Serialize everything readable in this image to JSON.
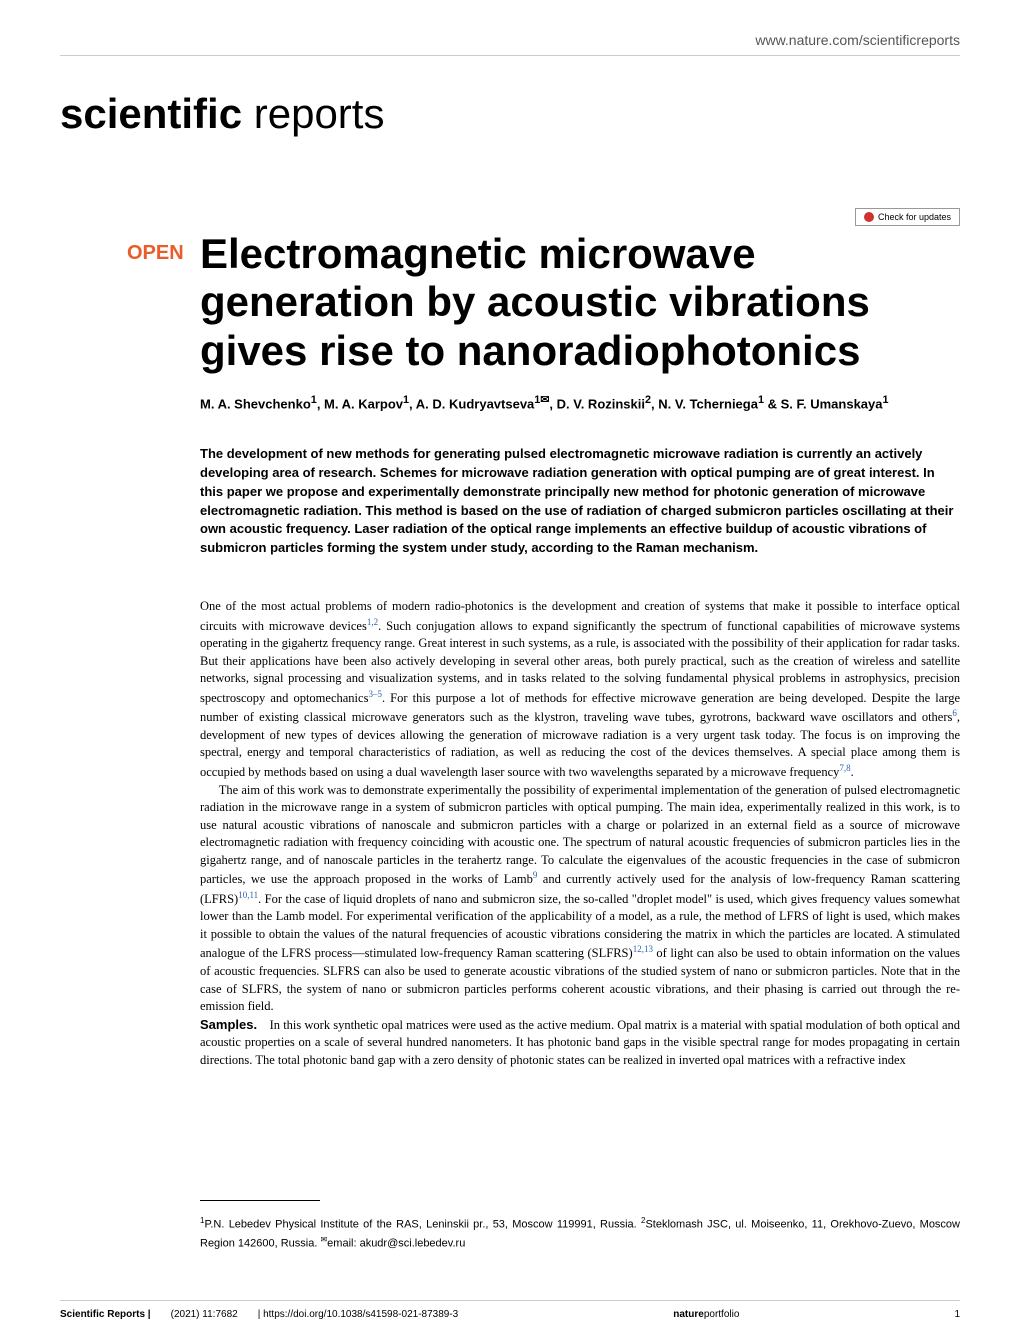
{
  "header": {
    "url": "www.nature.com/scientificreports"
  },
  "journal_logo": {
    "bold": "scientific",
    "light": " reports"
  },
  "check_updates": {
    "label": "Check for updates"
  },
  "open_badge": "OPEN",
  "article": {
    "title": "Electromagnetic microwave generation by acoustic vibrations gives rise to nanoradiophotonics",
    "authors_html": "M. A. Shevchenko<sup>1</sup>, M. A. Karpov<sup>1</sup>, A. D. Kudryavtseva<sup>1✉</sup>, D. V. Rozinskii<sup>2</sup>, N. V. Tcherniega<sup>1</sup> & S. F. Umanskaya<sup>1</sup>",
    "abstract": "The development of new methods for generating pulsed electromagnetic microwave radiation is currently an actively developing area of research. Schemes for microwave radiation generation with optical pumping are of great interest. In this paper we propose and experimentally demonstrate principally new method for photonic generation of microwave electromagnetic radiation. This method is based on the use of radiation of charged submicron particles oscillating at their own acoustic frequency. Laser radiation of the optical range implements an effective buildup of acoustic vibrations of submicron particles forming the system under study, according to the Raman mechanism."
  },
  "body": {
    "para1": "One of the most actual problems of modern radio-photonics is the development and creation of systems that make it possible to interface optical circuits with microwave devices",
    "cite1": "1,2",
    "para1b": ". Such conjugation allows to expand significantly the spectrum of functional capabilities of microwave systems operating in the gigahertz frequency range. Great interest in such systems, as a rule, is associated with the possibility of their application for radar tasks. But their applications have been also actively developing in several other areas, both purely practical, such as the creation of wireless and satellite networks, signal processing and visualization systems, and in tasks related to the solving fundamental physical problems in astrophysics, precision spectroscopy and optomechanics",
    "cite2": "3–5",
    "para1c": ". For this purpose a lot of methods for effective microwave generation are being developed. Despite the large number of existing classical microwave generators such as the klystron, traveling wave tubes, gyrotrons, backward wave oscillators and others",
    "cite3": "6",
    "para1d": ", development of new types of devices allowing the generation of microwave radiation is a very urgent task today. The focus is on improving the spectral, energy and temporal characteristics of radiation, as well as reducing the cost of the devices themselves. A special place among them is occupied by methods based on using a dual wavelength laser source with two wavelengths separated by a microwave frequency",
    "cite4": "7,8",
    "para1e": ".",
    "para2a": "The aim of this work was to demonstrate experimentally the possibility of experimental implementation of the generation of pulsed electromagnetic radiation in the microwave range in a system of submicron particles with optical pumping. The main idea, experimentally realized in this work, is to use natural acoustic vibrations of nanoscale and submicron particles with a charge or polarized in an external field as a source of microwave electromagnetic radiation with frequency coinciding with acoustic one. The spectrum of natural acoustic frequencies of submicron particles lies in the gigahertz range, and of nanoscale particles in the terahertz range. To calculate the eigenvalues of the acoustic frequencies in the case of submicron particles, we use the approach proposed in the works of Lamb",
    "cite5": "9",
    "para2b": " and currently actively used for the analysis of low-frequency Raman scattering (LFRS)",
    "cite6": "10,11",
    "para2c": ". For the case of liquid droplets of nano and submicron size, the so-called \"droplet model\" is used, which gives frequency values somewhat lower than the Lamb model. For experimental verification of the applicability of a model, as a rule, the method of LFRS of light is used, which makes it possible to obtain the values of the natural frequencies of acoustic vibrations considering the matrix in which the particles are located. A stimulated analogue of the LFRS process—stimulated low-frequency Raman scattering (SLFRS)",
    "cite7": "12,13",
    "para2d": " of light can also be used to obtain information on the values of acoustic frequencies. SLFRS can also be used to generate acoustic vibrations of the studied system of nano or submicron particles. Note that in the case of SLFRS, the system of nano or submicron particles performs coherent acoustic vibrations, and their phasing is carried out through the re-emission field."
  },
  "samples": {
    "heading": "Samples.",
    "text": "In this work synthetic opal matrices were used as the active medium. Opal matrix is a material with spatial modulation of both optical and acoustic properties on a scale of several hundred nanometers. It has photonic band gaps in the visible spectral range for modes propagating in certain directions. The total photonic band gap with a zero density of photonic states can be realized in inverted opal matrices with a refractive index"
  },
  "affiliations": {
    "text_html": "<sup>1</sup>P.N. Lebedev Physical Institute of the RAS, Leninskii pr., 53, Moscow 119991, Russia. <sup>2</sup>Steklomash JSC, ul. Moiseenko, 11, Orekhovo-Zuevo, Moscow Region 142600, Russia. <sup>✉</sup>email: akudr@sci.lebedev.ru"
  },
  "footer": {
    "journal": "Scientific Reports |",
    "citation": "(2021) 11:7682",
    "doi": "| https://doi.org/10.1038/s41598-021-87389-3",
    "portfolio_bold": "nature",
    "portfolio_light": "portfolio",
    "page_num": "1"
  },
  "colors": {
    "open_badge": "#e85d2b",
    "citation_link": "#2a63b0",
    "header_text": "#555555",
    "rule": "#cccccc"
  }
}
